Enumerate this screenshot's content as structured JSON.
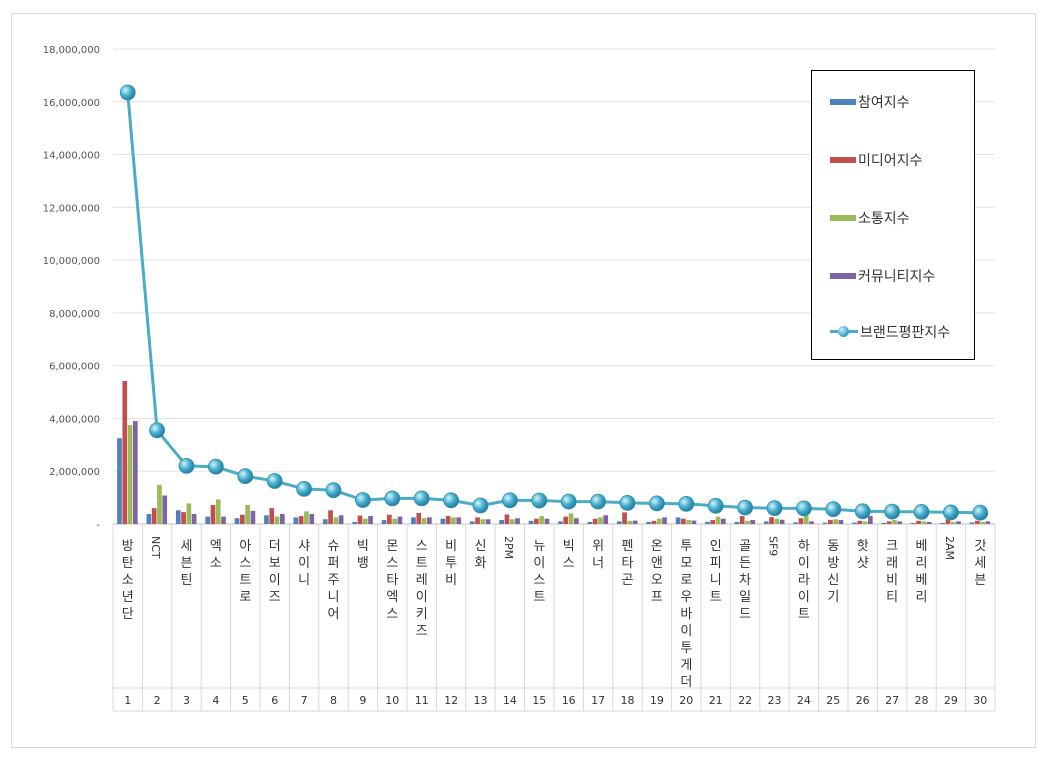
{
  "chart_data": {
    "type": "bar",
    "title": "",
    "xlabel": "",
    "ylabel": "",
    "ylim": [
      0,
      18000000
    ],
    "yticks": [
      "-",
      "2,000,000",
      "4,000,000",
      "6,000,000",
      "8,000,000",
      "10,000,000",
      "12,000,000",
      "14,000,000",
      "16,000,000",
      "18,000,000"
    ],
    "grid": true,
    "legend_position": "top-right",
    "ranks": [
      "1",
      "2",
      "3",
      "4",
      "5",
      "6",
      "7",
      "8",
      "9",
      "10",
      "11",
      "12",
      "13",
      "14",
      "15",
      "16",
      "17",
      "18",
      "19",
      "20",
      "21",
      "22",
      "23",
      "24",
      "25",
      "26",
      "27",
      "28",
      "29",
      "30"
    ],
    "categories": [
      "방탄소년단",
      "NCT",
      "세븐틴",
      "엑소",
      "아스트로",
      "더보이즈",
      "샤이니",
      "슈퍼주니어",
      "빅뱅",
      "몬스타엑스",
      "스트레이키즈",
      "비투비",
      "신화",
      "2PM",
      "뉴이스트",
      "빅스",
      "위너",
      "펜타곤",
      "온앤오프",
      "투모로우바이투게더",
      "인피니트",
      "골든차일드",
      "SF9",
      "하이라이트",
      "동방신기",
      "핫샷",
      "크래비티",
      "베리베리",
      "2AM",
      "갓세븐"
    ],
    "series": [
      {
        "name": "참여지수",
        "kind": "bar",
        "color": "#4f81bd",
        "values": [
          3250000,
          380000,
          520000,
          280000,
          220000,
          330000,
          250000,
          180000,
          80000,
          150000,
          250000,
          200000,
          100000,
          150000,
          120000,
          100000,
          80000,
          100000,
          80000,
          250000,
          80000,
          80000,
          100000,
          60000,
          50000,
          50000,
          40000,
          40000,
          40000,
          60000
        ]
      },
      {
        "name": "미디어지수",
        "kind": "bar",
        "color": "#c0504d",
        "values": [
          5420000,
          600000,
          450000,
          720000,
          350000,
          600000,
          300000,
          520000,
          320000,
          350000,
          420000,
          300000,
          250000,
          360000,
          200000,
          280000,
          200000,
          440000,
          120000,
          200000,
          150000,
          300000,
          260000,
          220000,
          150000,
          120000,
          100000,
          120000,
          180000,
          120000
        ]
      },
      {
        "name": "소통지수",
        "kind": "bar",
        "color": "#9bbb59",
        "values": [
          3750000,
          1480000,
          780000,
          930000,
          720000,
          280000,
          480000,
          250000,
          200000,
          200000,
          220000,
          250000,
          180000,
          180000,
          300000,
          400000,
          250000,
          120000,
          200000,
          150000,
          280000,
          120000,
          200000,
          320000,
          180000,
          100000,
          150000,
          100000,
          80000,
          80000
        ]
      },
      {
        "name": "커뮤니티지수",
        "kind": "bar",
        "color": "#8064a2",
        "values": [
          3900000,
          1080000,
          380000,
          280000,
          500000,
          380000,
          380000,
          330000,
          300000,
          280000,
          250000,
          250000,
          180000,
          220000,
          200000,
          220000,
          330000,
          130000,
          250000,
          130000,
          200000,
          150000,
          160000,
          100000,
          150000,
          300000,
          100000,
          80000,
          100000,
          100000
        ]
      },
      {
        "name": "브랜드평판지수",
        "kind": "line",
        "color": "#4bacc6",
        "values": [
          16350000,
          3550000,
          2200000,
          2170000,
          1810000,
          1630000,
          1330000,
          1280000,
          910000,
          970000,
          970000,
          900000,
          700000,
          900000,
          890000,
          850000,
          850000,
          800000,
          780000,
          760000,
          690000,
          620000,
          600000,
          590000,
          560000,
          480000,
          470000,
          460000,
          440000,
          430000
        ]
      }
    ]
  }
}
